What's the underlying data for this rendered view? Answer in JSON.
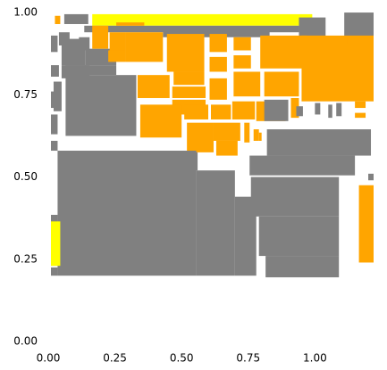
{
  "chart_data": {
    "type": "heatmap",
    "title": "",
    "xlabel": "",
    "ylabel": "",
    "xlim": [
      0,
      1.22
    ],
    "ylim": [
      0,
      1.03
    ],
    "grid": false,
    "legend": "none",
    "xticks": [
      0,
      0.25,
      0.5,
      0.75,
      1.0
    ],
    "xtick_labels": [
      "0.00",
      "0.25",
      "0.50",
      "0.75",
      "1.00"
    ],
    "yticks": [
      0,
      0.25,
      0.5,
      0.75,
      1.0
    ],
    "ytick_labels": [
      "0.00",
      "0.25",
      "0.50",
      "0.75",
      "1.00"
    ],
    "colors": {
      "gray": "#808080",
      "orange": "#ffa500",
      "yellow": "#ffff00",
      "background": "#ffffff"
    },
    "rects": [
      {
        "x0": 0.06,
        "x1": 0.15,
        "y0": 0.965,
        "y1": 0.995,
        "color": "gray"
      },
      {
        "x0": 0.025,
        "x1": 0.045,
        "y0": 0.965,
        "y1": 0.99,
        "color": "orange"
      },
      {
        "x0": 0.165,
        "x1": 0.99,
        "y0": 0.96,
        "y1": 0.995,
        "color": "yellow"
      },
      {
        "x0": 0.97,
        "x1": 1.005,
        "y0": 0.945,
        "y1": 0.98,
        "color": "gray"
      },
      {
        "x0": 1.11,
        "x1": 1.22,
        "y0": 0.88,
        "y1": 1.0,
        "color": "gray"
      },
      {
        "x0": 0.135,
        "x1": 0.94,
        "y0": 0.94,
        "y1": 0.96,
        "color": "gray"
      },
      {
        "x0": 0.43,
        "x1": 0.83,
        "y0": 0.925,
        "y1": 0.945,
        "color": "gray"
      },
      {
        "x0": 0.94,
        "x1": 1.04,
        "y0": 0.89,
        "y1": 0.985,
        "color": "gray"
      },
      {
        "x0": 0.01,
        "x1": 0.035,
        "y0": 0.88,
        "y1": 0.93,
        "color": "gray"
      },
      {
        "x0": 0.05,
        "x1": 0.14,
        "y0": 0.84,
        "y1": 0.92,
        "color": "gray"
      },
      {
        "x0": 0.01,
        "x1": 0.04,
        "y0": 0.805,
        "y1": 0.84,
        "color": "gray"
      },
      {
        "x0": 0.05,
        "x1": 0.155,
        "y0": 0.8,
        "y1": 0.84,
        "color": "gray"
      },
      {
        "x0": 0.115,
        "x1": 0.155,
        "y0": 0.885,
        "y1": 0.925,
        "color": "gray"
      },
      {
        "x0": 0.04,
        "x1": 0.08,
        "y0": 0.9,
        "y1": 0.94,
        "color": "gray"
      },
      {
        "x0": 0.02,
        "x1": 0.05,
        "y0": 0.7,
        "y1": 0.79,
        "color": "gray"
      },
      {
        "x0": 0.01,
        "x1": 0.035,
        "y0": 0.63,
        "y1": 0.69,
        "color": "gray"
      },
      {
        "x0": 0.01,
        "x1": 0.035,
        "y0": 0.58,
        "y1": 0.61,
        "color": "gray"
      },
      {
        "x0": 0.01,
        "x1": 0.035,
        "y0": 0.71,
        "y1": 0.76,
        "color": "gray"
      },
      {
        "x0": 0.065,
        "x1": 0.33,
        "y0": 0.625,
        "y1": 0.81,
        "color": "gray"
      },
      {
        "x0": 0.065,
        "x1": 0.255,
        "y0": 0.81,
        "y1": 0.84,
        "color": "gray"
      },
      {
        "x0": 0.14,
        "x1": 0.255,
        "y0": 0.84,
        "y1": 0.89,
        "color": "gray"
      },
      {
        "x0": 0.165,
        "x1": 0.225,
        "y0": 0.89,
        "y1": 0.96,
        "color": "orange"
      },
      {
        "x0": 0.255,
        "x1": 0.36,
        "y0": 0.96,
        "y1": 0.97,
        "color": "orange"
      },
      {
        "x0": 0.29,
        "x1": 0.43,
        "y0": 0.85,
        "y1": 0.94,
        "color": "orange"
      },
      {
        "x0": 0.23,
        "x1": 0.29,
        "y0": 0.88,
        "y1": 0.94,
        "color": "orange"
      },
      {
        "x0": 0.225,
        "x1": 0.29,
        "y0": 0.85,
        "y1": 0.885,
        "color": "orange"
      },
      {
        "x0": 0.445,
        "x1": 0.585,
        "y0": 0.82,
        "y1": 0.935,
        "color": "orange"
      },
      {
        "x0": 0.47,
        "x1": 0.585,
        "y0": 0.78,
        "y1": 0.82,
        "color": "orange"
      },
      {
        "x0": 0.605,
        "x1": 0.67,
        "y0": 0.88,
        "y1": 0.935,
        "color": "orange"
      },
      {
        "x0": 0.695,
        "x1": 0.76,
        "y0": 0.885,
        "y1": 0.925,
        "color": "orange"
      },
      {
        "x0": 0.795,
        "x1": 0.97,
        "y0": 0.83,
        "y1": 0.93,
        "color": "orange"
      },
      {
        "x0": 0.605,
        "x1": 0.67,
        "y0": 0.82,
        "y1": 0.865,
        "color": "orange"
      },
      {
        "x0": 0.695,
        "x1": 0.76,
        "y0": 0.83,
        "y1": 0.87,
        "color": "orange"
      },
      {
        "x0": 0.95,
        "x1": 1.22,
        "y0": 0.73,
        "y1": 0.93,
        "color": "orange"
      },
      {
        "x0": 0.95,
        "x1": 1.12,
        "y0": 0.905,
        "y1": 0.925,
        "color": "orange"
      },
      {
        "x0": 0.335,
        "x1": 0.455,
        "y0": 0.74,
        "y1": 0.81,
        "color": "orange"
      },
      {
        "x0": 0.465,
        "x1": 0.59,
        "y0": 0.74,
        "y1": 0.775,
        "color": "orange"
      },
      {
        "x0": 0.605,
        "x1": 0.67,
        "y0": 0.735,
        "y1": 0.8,
        "color": "orange"
      },
      {
        "x0": 0.695,
        "x1": 0.795,
        "y0": 0.745,
        "y1": 0.82,
        "color": "orange"
      },
      {
        "x0": 0.81,
        "x1": 0.94,
        "y0": 0.745,
        "y1": 0.82,
        "color": "orange"
      },
      {
        "x0": 0.465,
        "x1": 0.59,
        "y0": 0.69,
        "y1": 0.735,
        "color": "orange"
      },
      {
        "x0": 0.345,
        "x1": 0.5,
        "y0": 0.62,
        "y1": 0.72,
        "color": "orange"
      },
      {
        "x0": 0.51,
        "x1": 0.6,
        "y0": 0.675,
        "y1": 0.72,
        "color": "orange"
      },
      {
        "x0": 0.61,
        "x1": 0.685,
        "y0": 0.675,
        "y1": 0.72,
        "color": "orange"
      },
      {
        "x0": 0.69,
        "x1": 0.775,
        "y0": 0.675,
        "y1": 0.73,
        "color": "orange"
      },
      {
        "x0": 0.78,
        "x1": 0.89,
        "y0": 0.67,
        "y1": 0.73,
        "color": "orange"
      },
      {
        "x0": 0.91,
        "x1": 0.94,
        "y0": 0.68,
        "y1": 0.74,
        "color": "orange"
      },
      {
        "x0": 0.52,
        "x1": 0.62,
        "y0": 0.575,
        "y1": 0.665,
        "color": "orange"
      },
      {
        "x0": 0.62,
        "x1": 0.72,
        "y0": 0.61,
        "y1": 0.665,
        "color": "orange"
      },
      {
        "x0": 0.63,
        "x1": 0.71,
        "y0": 0.565,
        "y1": 0.61,
        "color": "orange"
      },
      {
        "x0": 0.735,
        "x1": 0.755,
        "y0": 0.605,
        "y1": 0.665,
        "color": "orange"
      },
      {
        "x0": 0.77,
        "x1": 0.79,
        "y0": 0.61,
        "y1": 0.645,
        "color": "orange"
      },
      {
        "x0": 0.79,
        "x1": 0.8,
        "y0": 0.61,
        "y1": 0.635,
        "color": "orange"
      },
      {
        "x0": 0.81,
        "x1": 0.9,
        "y0": 0.67,
        "y1": 0.735,
        "color": "gray"
      },
      {
        "x0": 0.93,
        "x1": 0.955,
        "y0": 0.685,
        "y1": 0.715,
        "color": "gray"
      },
      {
        "x0": 1.0,
        "x1": 1.02,
        "y0": 0.69,
        "y1": 0.725,
        "color": "gray"
      },
      {
        "x0": 1.05,
        "x1": 1.065,
        "y0": 0.68,
        "y1": 0.72,
        "color": "gray"
      },
      {
        "x0": 1.08,
        "x1": 1.1,
        "y0": 0.685,
        "y1": 0.725,
        "color": "gray"
      },
      {
        "x0": 1.15,
        "x1": 1.19,
        "y0": 0.71,
        "y1": 0.73,
        "color": "orange"
      },
      {
        "x0": 1.15,
        "x1": 1.19,
        "y0": 0.68,
        "y1": 0.695,
        "color": "orange"
      },
      {
        "x0": 0.82,
        "x1": 1.21,
        "y0": 0.565,
        "y1": 0.645,
        "color": "gray"
      },
      {
        "x0": 0.755,
        "x1": 1.15,
        "y0": 0.505,
        "y1": 0.565,
        "color": "gray"
      },
      {
        "x0": 0.76,
        "x1": 1.09,
        "y0": 0.38,
        "y1": 0.5,
        "color": "gray"
      },
      {
        "x0": 0.79,
        "x1": 1.09,
        "y0": 0.26,
        "y1": 0.38,
        "color": "gray"
      },
      {
        "x0": 0.815,
        "x1": 1.09,
        "y0": 0.195,
        "y1": 0.26,
        "color": "gray"
      },
      {
        "x0": 1.2,
        "x1": 1.22,
        "y0": 0.49,
        "y1": 0.51,
        "color": "gray"
      },
      {
        "x0": 1.165,
        "x1": 1.22,
        "y0": 0.24,
        "y1": 0.475,
        "color": "orange"
      },
      {
        "x0": 0.035,
        "x1": 0.555,
        "y0": 0.2,
        "y1": 0.58,
        "color": "gray"
      },
      {
        "x0": 0.555,
        "x1": 0.7,
        "y0": 0.2,
        "y1": 0.52,
        "color": "gray"
      },
      {
        "x0": 0.7,
        "x1": 0.78,
        "y0": 0.2,
        "y1": 0.44,
        "color": "gray"
      },
      {
        "x0": 0.55,
        "x1": 0.56,
        "y0": 0.52,
        "y1": 0.575,
        "color": "gray"
      },
      {
        "x0": 0.01,
        "x1": 0.035,
        "y0": 0.23,
        "y1": 0.385,
        "color": "gray"
      },
      {
        "x0": 0.01,
        "x1": 0.035,
        "y0": 0.2,
        "y1": 0.225,
        "color": "gray"
      },
      {
        "x0": 0.01,
        "x1": 0.045,
        "y0": 0.23,
        "y1": 0.365,
        "color": "yellow"
      }
    ]
  }
}
